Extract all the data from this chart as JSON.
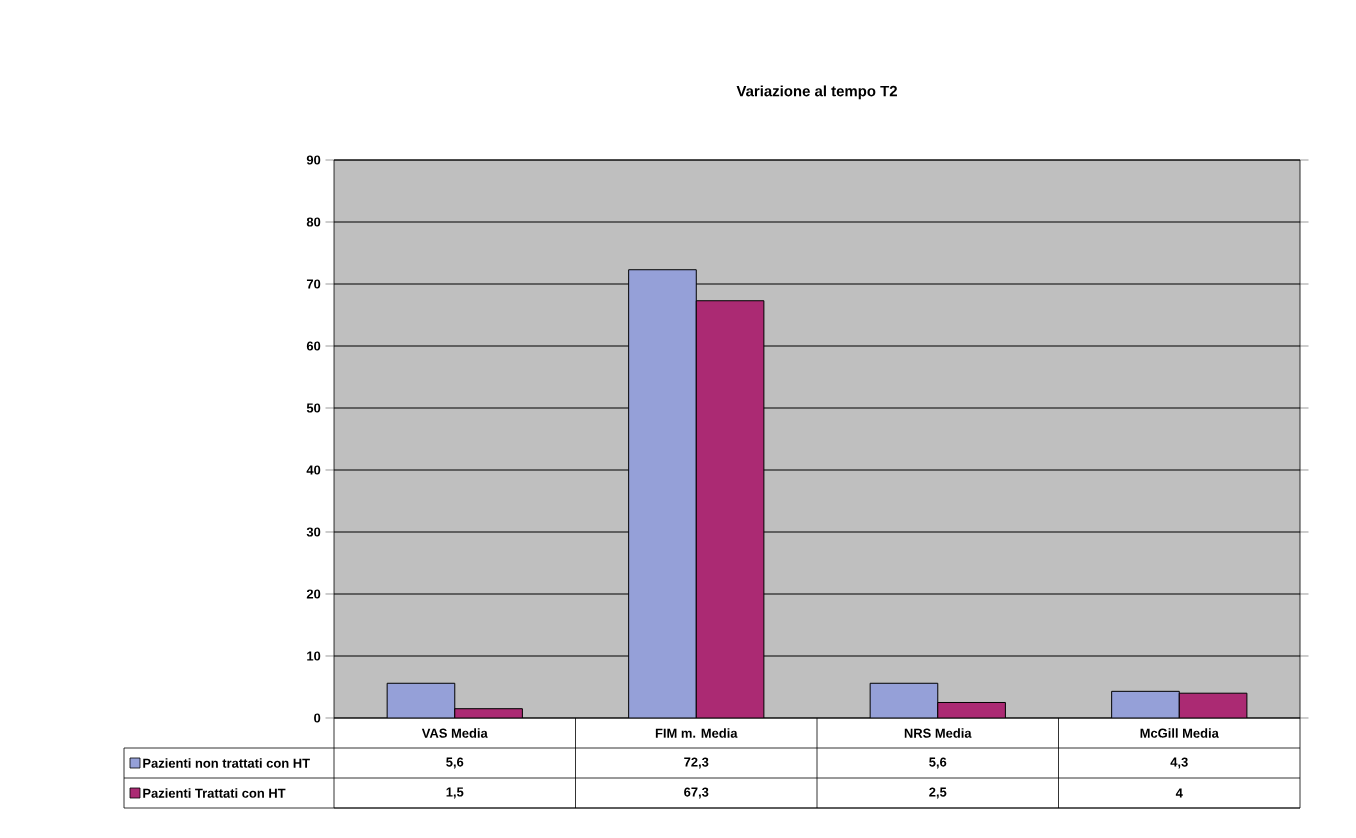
{
  "chart_data": {
    "type": "bar",
    "title": "Variazione al tempo T2",
    "categories": [
      "VAS Media",
      "FIM m. Media",
      "NRS Media",
      "McGill Media"
    ],
    "series": [
      {
        "name": "Pazienti non trattati con HT",
        "color": "#95a0d8",
        "values": [
          5.6,
          72.3,
          5.6,
          4.3
        ],
        "value_labels": [
          "5,6",
          "72,3",
          "5,6",
          "4,3"
        ]
      },
      {
        "name": "Pazienti Trattati con HT",
        "color": "#ab2a73",
        "values": [
          1.5,
          67.3,
          2.5,
          4
        ],
        "value_labels": [
          "1,5",
          "67,3",
          "2,5",
          "4"
        ]
      }
    ],
    "ylim": [
      0,
      90
    ],
    "yticks": [
      0,
      10,
      20,
      30,
      40,
      50,
      60,
      70,
      80,
      90
    ],
    "grid": "y",
    "legend": "bottom"
  }
}
